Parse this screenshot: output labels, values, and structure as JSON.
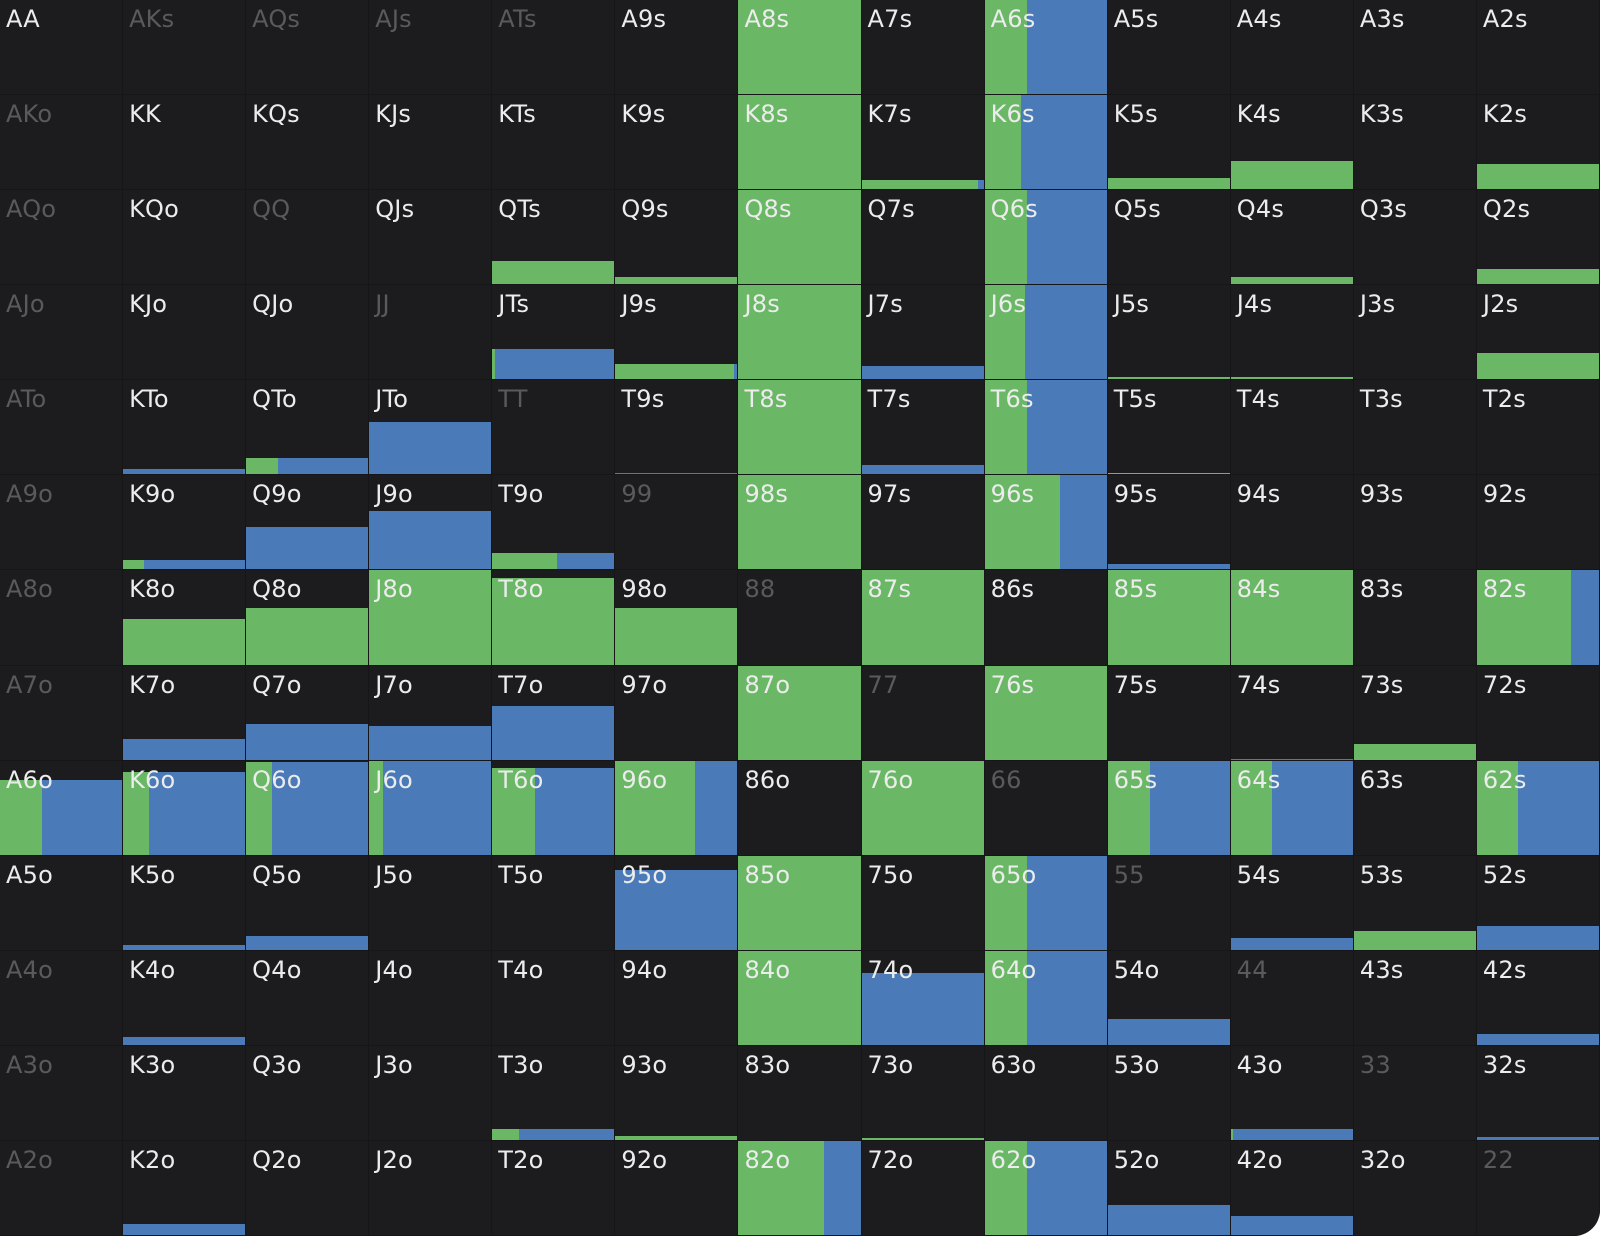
{
  "colors": {
    "background": "#1c1c1e",
    "green": "#6ab866",
    "blue": "#4a7bb8",
    "text": "#ececec",
    "text_dim": "#5a5a5c"
  },
  "grid": {
    "rows": [
      [
        {
          "label": "AA"
        },
        {
          "label": "AKs",
          "dim": true
        },
        {
          "label": "AQs",
          "dim": true
        },
        {
          "label": "AJs",
          "dim": true
        },
        {
          "label": "ATs",
          "dim": true
        },
        {
          "label": "A9s"
        },
        {
          "label": "A8s",
          "h": 1,
          "g": 1
        },
        {
          "label": "A7s"
        },
        {
          "label": "A6s",
          "h": 1,
          "g": 0.35
        },
        {
          "label": "A5s"
        },
        {
          "label": "A4s"
        },
        {
          "label": "A3s"
        },
        {
          "label": "A2s"
        }
      ],
      [
        {
          "label": "AKo",
          "dim": true
        },
        {
          "label": "KK"
        },
        {
          "label": "KQs"
        },
        {
          "label": "KJs"
        },
        {
          "label": "KTs"
        },
        {
          "label": "K9s"
        },
        {
          "label": "K8s",
          "h": 1,
          "g": 1
        },
        {
          "label": "K7s",
          "h": 0.1,
          "g": 0.95
        },
        {
          "label": "K6s",
          "h": 1,
          "g": 0.3
        },
        {
          "label": "K5s",
          "h": 0.12,
          "g": 1
        },
        {
          "label": "K4s",
          "h": 0.3,
          "g": 1
        },
        {
          "label": "K3s"
        },
        {
          "label": "K2s",
          "h": 0.27,
          "g": 1
        }
      ],
      [
        {
          "label": "AQo",
          "dim": true
        },
        {
          "label": "KQo"
        },
        {
          "label": "QQ",
          "dim": true
        },
        {
          "label": "QJs"
        },
        {
          "label": "QTs",
          "h": 0.25,
          "g": 1
        },
        {
          "label": "Q9s",
          "h": 0.08,
          "g": 1
        },
        {
          "label": "Q8s",
          "h": 1,
          "g": 1
        },
        {
          "label": "Q7s"
        },
        {
          "label": "Q6s",
          "h": 1,
          "g": 0.35
        },
        {
          "label": "Q5s"
        },
        {
          "label": "Q4s",
          "h": 0.08,
          "g": 1
        },
        {
          "label": "Q3s"
        },
        {
          "label": "Q2s",
          "h": 0.16,
          "g": 1
        }
      ],
      [
        {
          "label": "AJo",
          "dim": true
        },
        {
          "label": "KJo"
        },
        {
          "label": "QJo"
        },
        {
          "label": "JJ",
          "dim": true
        },
        {
          "label": "JTs",
          "h": 0.32,
          "g": 0.02
        },
        {
          "label": "J9s",
          "h": 0.16,
          "g": 0.97
        },
        {
          "label": "J8s",
          "h": 1,
          "g": 1
        },
        {
          "label": "J7s",
          "h": 0.14,
          "g": 0
        },
        {
          "label": "J6s",
          "h": 1,
          "g": 0.33
        },
        {
          "label": "J5s",
          "h": 0.02,
          "g": 1
        },
        {
          "label": "J4s",
          "h": 0.02,
          "g": 1
        },
        {
          "label": "J3s"
        },
        {
          "label": "J2s",
          "h": 0.28,
          "g": 1
        }
      ],
      [
        {
          "label": "ATo",
          "dim": true
        },
        {
          "label": "KTo",
          "h": 0.06,
          "g": 0
        },
        {
          "label": "QTo",
          "h": 0.17,
          "g": 0.26
        },
        {
          "label": "JTo",
          "h": 0.56,
          "g": 0
        },
        {
          "label": "TT",
          "dim": true
        },
        {
          "label": "T9s",
          "h": 0.01,
          "g": 0
        },
        {
          "label": "T8s",
          "h": 1,
          "g": 1
        },
        {
          "label": "T7s",
          "h": 0.1,
          "g": 0
        },
        {
          "label": "T6s",
          "h": 1,
          "g": 0.35
        },
        {
          "label": "T5s",
          "h": 0.01,
          "g": 1
        },
        {
          "label": "T4s"
        },
        {
          "label": "T3s"
        },
        {
          "label": "T2s"
        }
      ],
      [
        {
          "label": "A9o",
          "dim": true
        },
        {
          "label": "K9o",
          "h": 0.1,
          "g": 0.17
        },
        {
          "label": "Q9o",
          "h": 0.45,
          "g": 0
        },
        {
          "label": "J9o",
          "h": 0.62,
          "g": 0
        },
        {
          "label": "T9o",
          "h": 0.18,
          "g": 0.53
        },
        {
          "label": "99",
          "dim": true
        },
        {
          "label": "98s",
          "h": 1,
          "g": 1
        },
        {
          "label": "97s"
        },
        {
          "label": "96s",
          "h": 1,
          "g": 0.62
        },
        {
          "label": "95s",
          "h": 0.06,
          "g": 0
        },
        {
          "label": "94s"
        },
        {
          "label": "93s"
        },
        {
          "label": "92s"
        }
      ],
      [
        {
          "label": "A8o",
          "dim": true
        },
        {
          "label": "K8o",
          "h": 0.48,
          "g": 1
        },
        {
          "label": "Q8o",
          "h": 0.6,
          "g": 1
        },
        {
          "label": "J8o",
          "h": 1,
          "g": 1
        },
        {
          "label": "T8o",
          "h": 0.92,
          "g": 1
        },
        {
          "label": "98o",
          "h": 0.6,
          "g": 1
        },
        {
          "label": "88",
          "dim": true
        },
        {
          "label": "87s",
          "h": 1,
          "g": 1
        },
        {
          "label": "86s"
        },
        {
          "label": "85s",
          "h": 1,
          "g": 1
        },
        {
          "label": "84s",
          "h": 1,
          "g": 1
        },
        {
          "label": "83s"
        },
        {
          "label": "82s",
          "h": 1,
          "g": 0.77
        }
      ],
      [
        {
          "label": "A7o",
          "dim": true
        },
        {
          "label": "K7o",
          "h": 0.22,
          "g": 0
        },
        {
          "label": "Q7o",
          "h": 0.38,
          "g": 0
        },
        {
          "label": "J7o",
          "h": 0.36,
          "g": 0
        },
        {
          "label": "T7o",
          "h": 0.57,
          "g": 0
        },
        {
          "label": "97o"
        },
        {
          "label": "87o",
          "h": 1,
          "g": 1
        },
        {
          "label": "77",
          "dim": true
        },
        {
          "label": "76s",
          "h": 1,
          "g": 1
        },
        {
          "label": "75s"
        },
        {
          "label": "74s",
          "h": 0.01,
          "g": 0
        },
        {
          "label": "73s",
          "h": 0.17,
          "g": 1
        },
        {
          "label": "72s"
        }
      ],
      [
        {
          "label": "A6o",
          "h": 0.79,
          "g": 0.34
        },
        {
          "label": "K6o",
          "h": 0.88,
          "g": 0.21
        },
        {
          "label": "Q6o",
          "h": 0.99,
          "g": 0.21
        },
        {
          "label": "J6o",
          "h": 1,
          "g": 0.11
        },
        {
          "label": "T6o",
          "h": 0.92,
          "g": 0.35
        },
        {
          "label": "96o",
          "h": 1,
          "g": 0.65
        },
        {
          "label": "86o"
        },
        {
          "label": "76o",
          "h": 1,
          "g": 1
        },
        {
          "label": "66",
          "dim": true
        },
        {
          "label": "65s",
          "h": 1,
          "g": 0.35
        },
        {
          "label": "64s",
          "h": 1,
          "g": 0.34
        },
        {
          "label": "63s"
        },
        {
          "label": "62s",
          "h": 1,
          "g": 0.34
        }
      ],
      [
        {
          "label": "A5o"
        },
        {
          "label": "K5o",
          "h": 0.05,
          "g": 0
        },
        {
          "label": "Q5o",
          "h": 0.15,
          "g": 0
        },
        {
          "label": "J5o"
        },
        {
          "label": "T5o"
        },
        {
          "label": "95o",
          "h": 0.85,
          "g": 0
        },
        {
          "label": "85o",
          "h": 1,
          "g": 1
        },
        {
          "label": "75o"
        },
        {
          "label": "65o",
          "h": 1,
          "g": 0.35
        },
        {
          "label": "55",
          "dim": true
        },
        {
          "label": "54s",
          "h": 0.12,
          "g": 0
        },
        {
          "label": "53s",
          "h": 0.2,
          "g": 1
        },
        {
          "label": "52s",
          "h": 0.25,
          "g": 0
        }
      ],
      [
        {
          "label": "A4o",
          "dim": true
        },
        {
          "label": "K4o",
          "h": 0.08,
          "g": 0
        },
        {
          "label": "Q4o"
        },
        {
          "label": "J4o"
        },
        {
          "label": "T4o"
        },
        {
          "label": "94o"
        },
        {
          "label": "84o",
          "h": 1,
          "g": 1
        },
        {
          "label": "74o",
          "h": 0.76,
          "g": 0
        },
        {
          "label": "64o",
          "h": 1,
          "g": 0.35
        },
        {
          "label": "54o",
          "h": 0.28,
          "g": 0
        },
        {
          "label": "44",
          "dim": true
        },
        {
          "label": "43s"
        },
        {
          "label": "42s",
          "h": 0.12,
          "g": 0
        }
      ],
      [
        {
          "label": "A3o",
          "dim": true
        },
        {
          "label": "K3o"
        },
        {
          "label": "Q3o"
        },
        {
          "label": "J3o"
        },
        {
          "label": "T3o",
          "h": 0.12,
          "g": 0.22
        },
        {
          "label": "93o",
          "h": 0.04,
          "g": 1
        },
        {
          "label": "83o"
        },
        {
          "label": "73o",
          "h": 0.02,
          "g": 1
        },
        {
          "label": "63o"
        },
        {
          "label": "53o"
        },
        {
          "label": "43o",
          "h": 0.12,
          "g": 0.02
        },
        {
          "label": "33",
          "dim": true
        },
        {
          "label": "32s",
          "h": 0.03,
          "g": 0
        }
      ],
      [
        {
          "label": "A2o",
          "dim": true
        },
        {
          "label": "K2o",
          "h": 0.12,
          "g": 0
        },
        {
          "label": "Q2o"
        },
        {
          "label": "J2o"
        },
        {
          "label": "T2o"
        },
        {
          "label": "92o"
        },
        {
          "label": "82o",
          "h": 1,
          "g": 0.7
        },
        {
          "label": "72o"
        },
        {
          "label": "62o",
          "h": 1,
          "g": 0.35
        },
        {
          "label": "52o",
          "h": 0.32,
          "g": 0
        },
        {
          "label": "42o",
          "h": 0.2,
          "g": 0
        },
        {
          "label": "32o"
        },
        {
          "label": "22",
          "dim": true
        }
      ]
    ]
  }
}
